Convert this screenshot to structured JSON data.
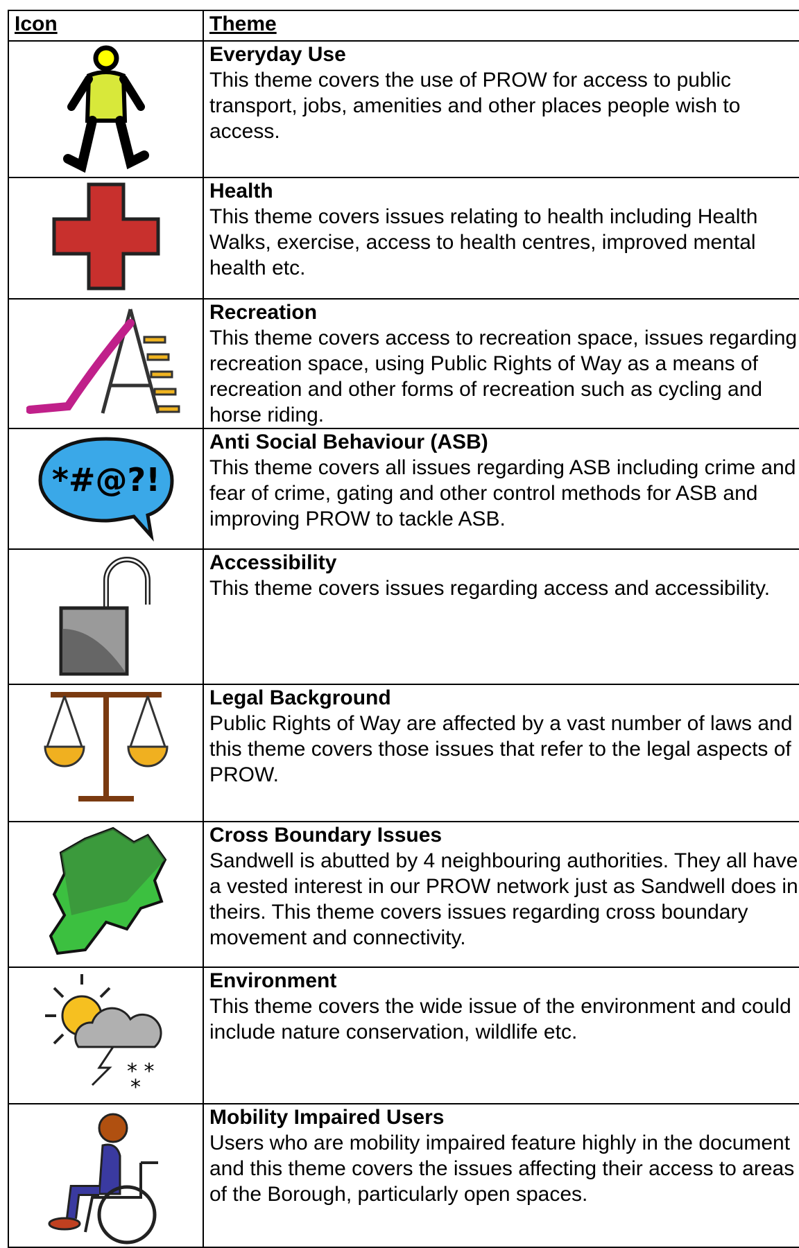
{
  "header": {
    "icon": "Icon",
    "theme": "Theme"
  },
  "rows": [
    {
      "title": "Everyday Use",
      "text": "This theme covers the use of PROW for access to public transport, jobs, amenities and other places people wish to access."
    },
    {
      "title": "Health",
      "text": "This theme covers issues relating to health including Health Walks, exercise, access to health centres, improved mental health etc."
    },
    {
      "title": "Recreation",
      "text": "This theme covers access to recreation space, issues regarding recreation space, using Public Rights of Way as a means of recreation and other forms of recreation such as cycling and horse riding."
    },
    {
      "title": "Anti Social Behaviour (ASB)",
      "text": "This theme covers all issues regarding ASB including crime and fear of crime, gating and other control methods for ASB and improving PROW to tackle ASB."
    },
    {
      "title": "Accessibility",
      "text": "This theme covers issues regarding access and accessibility."
    },
    {
      "title": "Legal Background",
      "text": "Public Rights of Way are affected by a vast number of laws and this theme covers those issues that refer to the legal aspects of PROW."
    },
    {
      "title": "Cross Boundary Issues",
      "text": "Sandwell is abutted by 4 neighbouring authorities. They all have a vested interest in our PROW network just as Sandwell does in theirs. This theme covers issues regarding cross boundary movement and connectivity."
    },
    {
      "title": "Environment",
      "text": "This theme covers the wide issue of the environment and could include nature conservation, wildlife etc."
    },
    {
      "title": "Mobility Impaired Users",
      "text": "Users who are mobility impaired feature highly in the document and this theme covers the issues affecting their access to areas of the Borough, particularly open spaces."
    }
  ]
}
